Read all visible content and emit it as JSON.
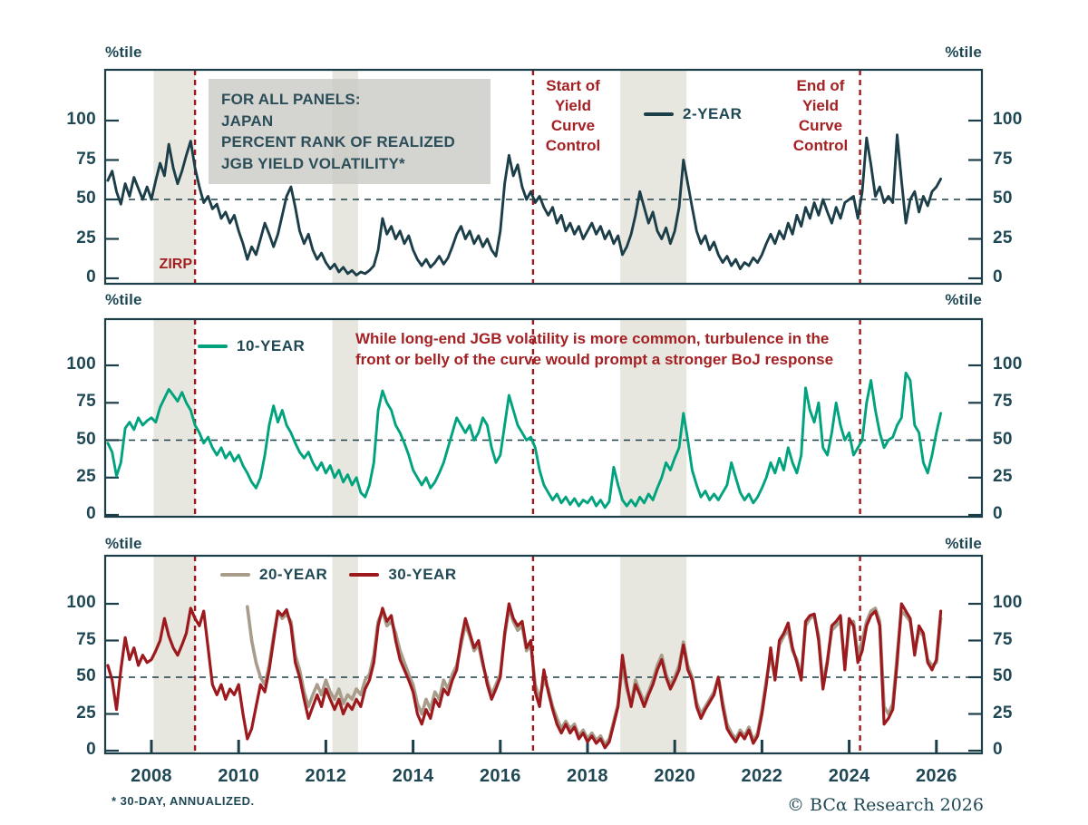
{
  "axis_unit_label": "%tile",
  "info_box": "FOR ALL PANELS:\nJAPAN\nPERCENT RANK OF REALIZED\nJGB YIELD VOLATILITY*",
  "middle_note": "While long-end JGB volatility is more common, turbulence in the\nfront or belly of the curve would prompt a stronger BoJ response",
  "footnote": "* 30-DAY, ANNUALIZED.",
  "copyright": "© BCα Research 2026",
  "colors": {
    "axis": "#1C3E49",
    "text": "#1F4854",
    "red_line": "#9C191D",
    "red_text": "#A32023",
    "green": "#00A37D",
    "tan": "#A89C8B",
    "band": "#E8E7DF",
    "box_bg": "#CACAC7"
  },
  "chart_data": {
    "type": "line",
    "title": "Japan percent rank of realized JGB yield volatility (30-day, annualized)",
    "x_axis": {
      "label_years": [
        2008,
        2010,
        2012,
        2014,
        2016,
        2018,
        2020,
        2022,
        2024,
        2026
      ],
      "range": [
        2007.0,
        2027.0
      ]
    },
    "y_axis": {
      "ticks": [
        0,
        25,
        50,
        75,
        100
      ],
      "unit": "%tile",
      "ylim": [
        0,
        130
      ]
    },
    "reference_line_y": 50,
    "grid": false,
    "events": [
      {
        "name": "zirp",
        "label": "ZIRP",
        "year": 2009.0
      },
      {
        "name": "ycc-start",
        "label": "Start of\nYield\nCurve\nControl",
        "year": 2016.75
      },
      {
        "name": "ycc-end",
        "label": "End of\nYield\nCurve\nControl",
        "year": 2024.25
      }
    ],
    "shaded_bands": [
      [
        2008.05,
        2009.0
      ],
      [
        2012.15,
        2012.74
      ],
      [
        2018.75,
        2020.27
      ]
    ],
    "panels": [
      {
        "id": "panel-2-year",
        "series": [
          {
            "name": "2-YEAR",
            "color": "#1C3E49",
            "start": 2007.0,
            "step": 0.1,
            "values": [
              62,
              68,
              55,
              47,
              60,
              52,
              64,
              57,
              50,
              58,
              50,
              62,
              73,
              65,
              85,
              70,
              60,
              68,
              78,
              87,
              70,
              58,
              48,
              52,
              44,
              47,
              38,
              42,
              35,
              40,
              30,
              22,
              12,
              20,
              15,
              25,
              35,
              28,
              20,
              28,
              40,
              52,
              58,
              45,
              30,
              22,
              28,
              18,
              12,
              16,
              10,
              6,
              9,
              4,
              7,
              3,
              5,
              2,
              4,
              3,
              5,
              8,
              18,
              38,
              28,
              33,
              25,
              30,
              22,
              27,
              18,
              12,
              8,
              12,
              7,
              10,
              14,
              9,
              13,
              20,
              28,
              33,
              25,
              30,
              22,
              27,
              20,
              25,
              18,
              14,
              30,
              60,
              78,
              65,
              72,
              58,
              50,
              55,
              48,
              52,
              45,
              40,
              45,
              35,
              40,
              30,
              35,
              28,
              33,
              25,
              30,
              35,
              28,
              33,
              25,
              30,
              22,
              27,
              15,
              20,
              28,
              40,
              55,
              45,
              35,
              42,
              30,
              25,
              32,
              22,
              30,
              45,
              75,
              60,
              45,
              30,
              22,
              27,
              18,
              23,
              15,
              10,
              14,
              8,
              12,
              6,
              10,
              8,
              13,
              10,
              15,
              22,
              28,
              22,
              30,
              25,
              35,
              28,
              40,
              33,
              45,
              38,
              48,
              40,
              50,
              42,
              35,
              45,
              38,
              48,
              50,
              52,
              38,
              55,
              89,
              72,
              52,
              58,
              48,
              52,
              48,
              91,
              62,
              35,
              50,
              55,
              42,
              52,
              46,
              55,
              58,
              63
            ]
          }
        ]
      },
      {
        "id": "panel-10-year",
        "series": [
          {
            "name": "10-YEAR",
            "color": "#00A37D",
            "start": 2007.0,
            "step": 0.1,
            "values": [
              48,
              42,
              26,
              35,
              58,
              62,
              57,
              65,
              60,
              63,
              65,
              62,
              72,
              78,
              84,
              80,
              76,
              82,
              75,
              70,
              60,
              55,
              48,
              52,
              45,
              40,
              45,
              38,
              42,
              36,
              40,
              33,
              28,
              22,
              18,
              25,
              40,
              60,
              73,
              62,
              70,
              60,
              55,
              48,
              42,
              38,
              42,
              35,
              30,
              35,
              28,
              33,
              25,
              30,
              22,
              27,
              20,
              25,
              15,
              12,
              20,
              35,
              70,
              83,
              75,
              70,
              60,
              55,
              48,
              40,
              30,
              25,
              20,
              25,
              18,
              22,
              28,
              35,
              45,
              55,
              65,
              60,
              55,
              60,
              50,
              55,
              65,
              60,
              45,
              35,
              40,
              60,
              80,
              70,
              60,
              55,
              50,
              52,
              45,
              30,
              20,
              15,
              10,
              14,
              8,
              12,
              7,
              11,
              6,
              10,
              8,
              12,
              6,
              10,
              5,
              9,
              32,
              20,
              10,
              6,
              10,
              6,
              12,
              8,
              14,
              10,
              18,
              25,
              35,
              30,
              38,
              45,
              68,
              50,
              30,
              20,
              12,
              16,
              10,
              14,
              10,
              15,
              20,
              35,
              25,
              15,
              10,
              14,
              8,
              12,
              18,
              25,
              35,
              28,
              38,
              30,
              45,
              35,
              28,
              40,
              85,
              70,
              62,
              75,
              45,
              40,
              55,
              75,
              60,
              50,
              55,
              40,
              45,
              50,
              75,
              90,
              70,
              55,
              45,
              50,
              52,
              60,
              65,
              95,
              90,
              60,
              55,
              35,
              28,
              40,
              55,
              68
            ]
          }
        ]
      },
      {
        "id": "panel-20-30-year",
        "series": [
          {
            "name": "20-YEAR",
            "color": "#A89C8B",
            "start": 2010.2,
            "step": 0.1,
            "values": [
              98,
              75,
              60,
              50,
              45,
              58,
              78,
              95,
              90,
              93,
              88,
              65,
              55,
              40,
              30,
              38,
              45,
              38,
              48,
              40,
              35,
              42,
              32,
              38,
              35,
              42,
              38,
              48,
              52,
              65,
              88,
              95,
              85,
              88,
              80,
              68,
              60,
              52,
              45,
              32,
              25,
              35,
              28,
              40,
              35,
              48,
              42,
              52,
              58,
              72,
              86,
              78,
              68,
              72,
              58,
              48,
              38,
              45,
              52,
              78,
              97,
              88,
              82,
              85,
              68,
              72,
              45,
              35,
              48,
              42,
              30,
              22,
              15,
              20,
              15,
              18,
              10,
              14,
              8,
              12,
              7,
              10,
              4,
              8,
              20,
              32,
              58,
              42,
              32,
              48,
              40,
              33,
              40,
              48,
              58,
              65,
              52,
              45,
              50,
              58,
              74,
              58,
              50,
              33,
              25,
              30,
              35,
              40,
              50,
              33,
              18,
              12,
              8,
              14,
              10,
              16,
              7,
              12,
              28,
              48,
              65,
              50,
              72,
              78,
              82,
              68,
              62,
              50,
              85,
              90,
              92,
              78,
              45,
              62,
              82,
              85,
              88,
              58,
              85,
              88,
              65,
              75,
              88,
              95,
              97,
              88,
              30,
              25,
              32,
              65,
              95,
              92,
              88,
              68,
              82,
              78,
              62,
              58,
              60,
              90
            ]
          },
          {
            "name": "30-YEAR",
            "color": "#9C191D",
            "start": 2007.0,
            "step": 0.1,
            "values": [
              58,
              48,
              28,
              55,
              77,
              62,
              70,
              58,
              65,
              60,
              62,
              68,
              75,
              90,
              78,
              70,
              65,
              72,
              80,
              97,
              90,
              85,
              95,
              70,
              45,
              38,
              45,
              35,
              42,
              38,
              45,
              25,
              8,
              15,
              30,
              45,
              40,
              55,
              75,
              95,
              92,
              96,
              85,
              60,
              50,
              35,
              22,
              30,
              38,
              30,
              42,
              35,
              28,
              35,
              25,
              32,
              28,
              35,
              30,
              42,
              48,
              60,
              85,
              97,
              88,
              92,
              75,
              62,
              55,
              48,
              40,
              25,
              18,
              28,
              22,
              35,
              30,
              42,
              38,
              48,
              55,
              75,
              90,
              80,
              70,
              75,
              60,
              45,
              35,
              42,
              50,
              80,
              100,
              90,
              85,
              88,
              70,
              75,
              40,
              30,
              55,
              40,
              28,
              18,
              12,
              18,
              12,
              16,
              8,
              12,
              6,
              10,
              5,
              8,
              2,
              6,
              18,
              30,
              65,
              45,
              30,
              45,
              38,
              30,
              38,
              45,
              55,
              62,
              50,
              42,
              48,
              55,
              72,
              55,
              48,
              30,
              22,
              28,
              33,
              38,
              50,
              30,
              15,
              10,
              6,
              12,
              8,
              14,
              5,
              10,
              25,
              45,
              70,
              48,
              75,
              80,
              87,
              70,
              60,
              48,
              88,
              92,
              93,
              75,
              42,
              60,
              85,
              88,
              92,
              55,
              90,
              85,
              60,
              68,
              85,
              92,
              95,
              85,
              18,
              22,
              28,
              60,
              100,
              95,
              90,
              65,
              85,
              80,
              60,
              55,
              62,
              95
            ]
          }
        ]
      }
    ]
  }
}
